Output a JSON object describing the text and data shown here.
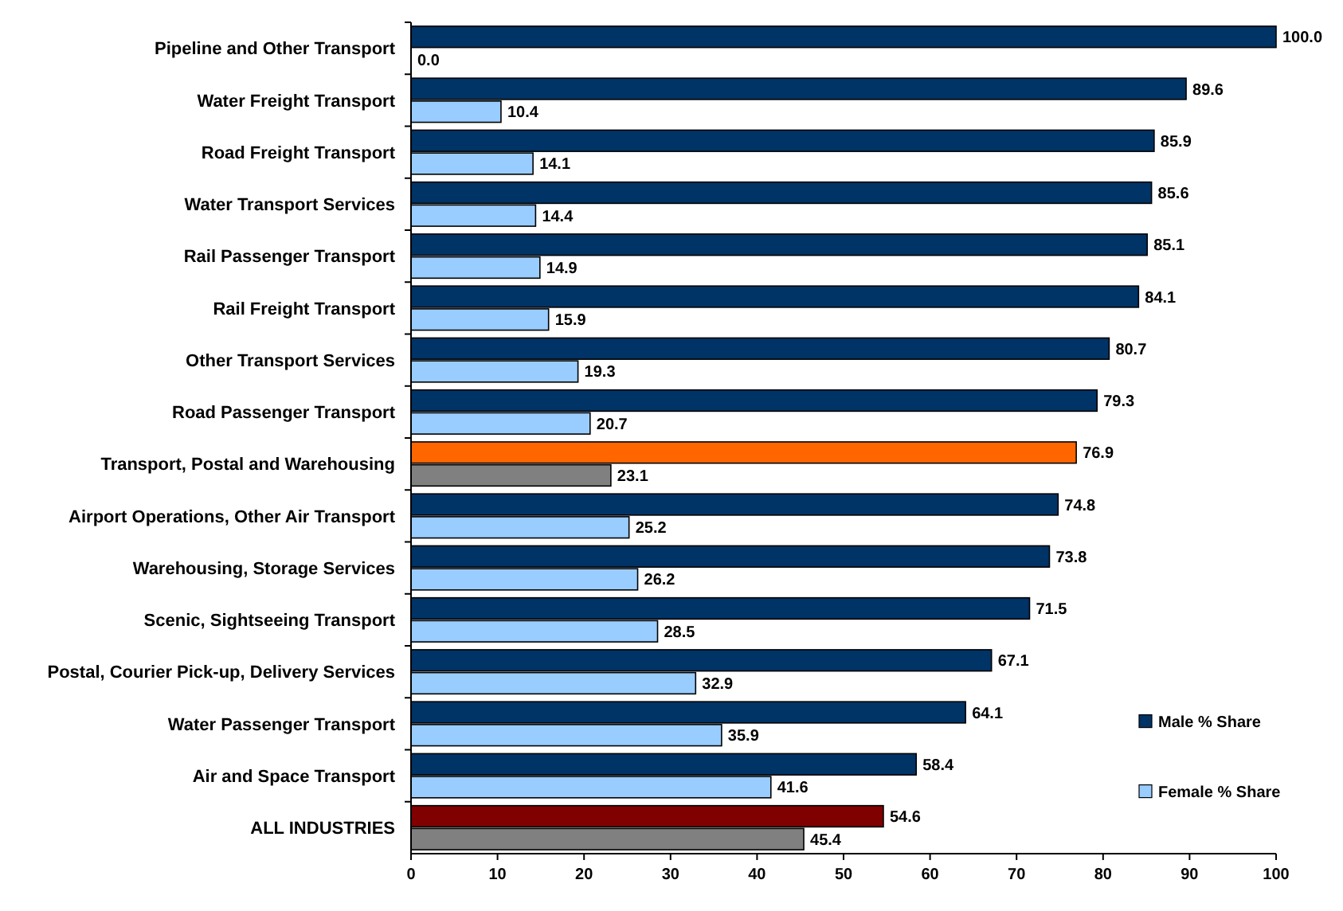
{
  "chart_data": {
    "type": "bar",
    "orientation": "horizontal",
    "categories": [
      "Pipeline and Other Transport",
      "Water Freight Transport",
      "Road Freight Transport",
      "Water Transport Services",
      "Rail Passenger Transport",
      "Rail Freight Transport",
      "Other Transport Services",
      "Road Passenger Transport",
      "Transport, Postal and Warehousing",
      "Airport Operations, Other Air Transport",
      "Warehousing, Storage Services",
      "Scenic, Sightseeing Transport",
      "Postal, Courier Pick-up, Delivery Services",
      "Water Passenger Transport",
      "Air and Space Transport",
      "ALL INDUSTRIES"
    ],
    "series": [
      {
        "name": "Male % Share",
        "color": "#003366",
        "colors": [
          "#003366",
          "#003366",
          "#003366",
          "#003366",
          "#003366",
          "#003366",
          "#003366",
          "#003366",
          "#ff6600",
          "#003366",
          "#003366",
          "#003366",
          "#003366",
          "#003366",
          "#003366",
          "#800000"
        ],
        "values": [
          100.0,
          89.6,
          85.9,
          85.6,
          85.1,
          84.1,
          80.7,
          79.3,
          76.9,
          74.8,
          73.8,
          71.5,
          67.1,
          64.1,
          58.4,
          54.6
        ],
        "value_labels": [
          "100.0",
          "89.6",
          "85.9",
          "85.6",
          "85.1",
          "84.1",
          "80.7",
          "79.3",
          "76.9",
          "74.8",
          "73.8",
          "71.5",
          "67.1",
          "64.1",
          "58.4",
          "54.6"
        ]
      },
      {
        "name": "Female % Share",
        "color": "#99ccff",
        "colors": [
          "#99ccff",
          "#99ccff",
          "#99ccff",
          "#99ccff",
          "#99ccff",
          "#99ccff",
          "#99ccff",
          "#99ccff",
          "#808080",
          "#99ccff",
          "#99ccff",
          "#99ccff",
          "#99ccff",
          "#99ccff",
          "#99ccff",
          "#808080"
        ],
        "values": [
          0.0,
          10.4,
          14.1,
          14.4,
          14.9,
          15.9,
          19.3,
          20.7,
          23.1,
          25.2,
          26.2,
          28.5,
          32.9,
          35.9,
          41.6,
          45.4
        ],
        "value_labels": [
          "0.0",
          "10.4",
          "14.1",
          "14.4",
          "14.9",
          "15.9",
          "19.3",
          "20.7",
          "23.1",
          "25.2",
          "26.2",
          "28.5",
          "32.9",
          "35.9",
          "41.6",
          "45.4"
        ]
      }
    ],
    "xlim": [
      0,
      100
    ],
    "xticks": [
      0,
      10,
      20,
      30,
      40,
      50,
      60,
      70,
      80,
      90,
      100
    ],
    "grid": false,
    "legend": "right"
  }
}
